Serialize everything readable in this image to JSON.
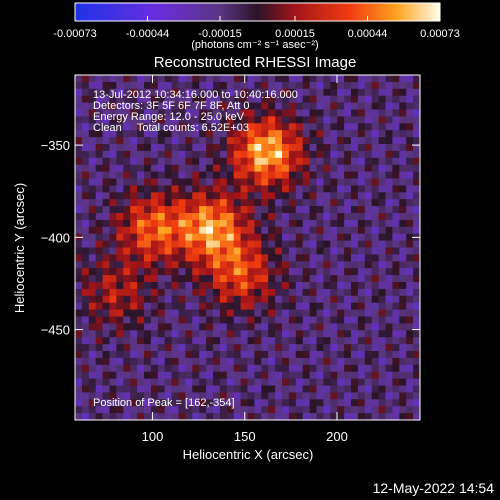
{
  "chart_data": {
    "type": "heatmap",
    "title": "Reconstructed RHESSI Image",
    "xlabel": "Heliocentric X (arcsec)",
    "ylabel": "Heliocentric Y (arcsec)",
    "xlim": [
      58,
      245
    ],
    "ylim": [
      -499,
      -312
    ],
    "xticks": [
      100,
      150,
      200
    ],
    "yticks": [
      -350,
      -400,
      -450
    ],
    "colorbar": {
      "range": [
        -0.00073,
        0.00073
      ],
      "ticks": [
        "-0.00073",
        "-0.00044",
        "-0.00015",
        "0.00015",
        "0.00044",
        "0.00073"
      ],
      "unit_label": "(photons cm⁻² s⁻¹ asec⁻²)"
    },
    "annotations": [
      "13-Jul-2012 10:34:16.000 to 10:40:16.000",
      "Detectors: 3F 5F 6F 7F 8F, Att 0",
      "Energy Range: 12.0 - 25.0 keV",
      "Clean     Total counts: 6.52E+03"
    ],
    "peak_label": "Position of Peak = [162,-354]",
    "peak_position": [
      162,
      -354
    ],
    "sources": [
      {
        "x": 162,
        "y": -354,
        "amplitude": 0.00073
      },
      {
        "x": 132,
        "y": -395,
        "amplitude": 0.00066
      },
      {
        "x": 100,
        "y": -395,
        "amplitude": 0.00052
      },
      {
        "x": 148,
        "y": -420,
        "amplitude": 0.00046
      },
      {
        "x": 80,
        "y": -430,
        "amplitude": 0.0003
      }
    ]
  },
  "footer": {
    "timestamp": "12-May-2022 14:54"
  },
  "colors": {
    "background": "#000000",
    "foreground": "#ffffff"
  }
}
